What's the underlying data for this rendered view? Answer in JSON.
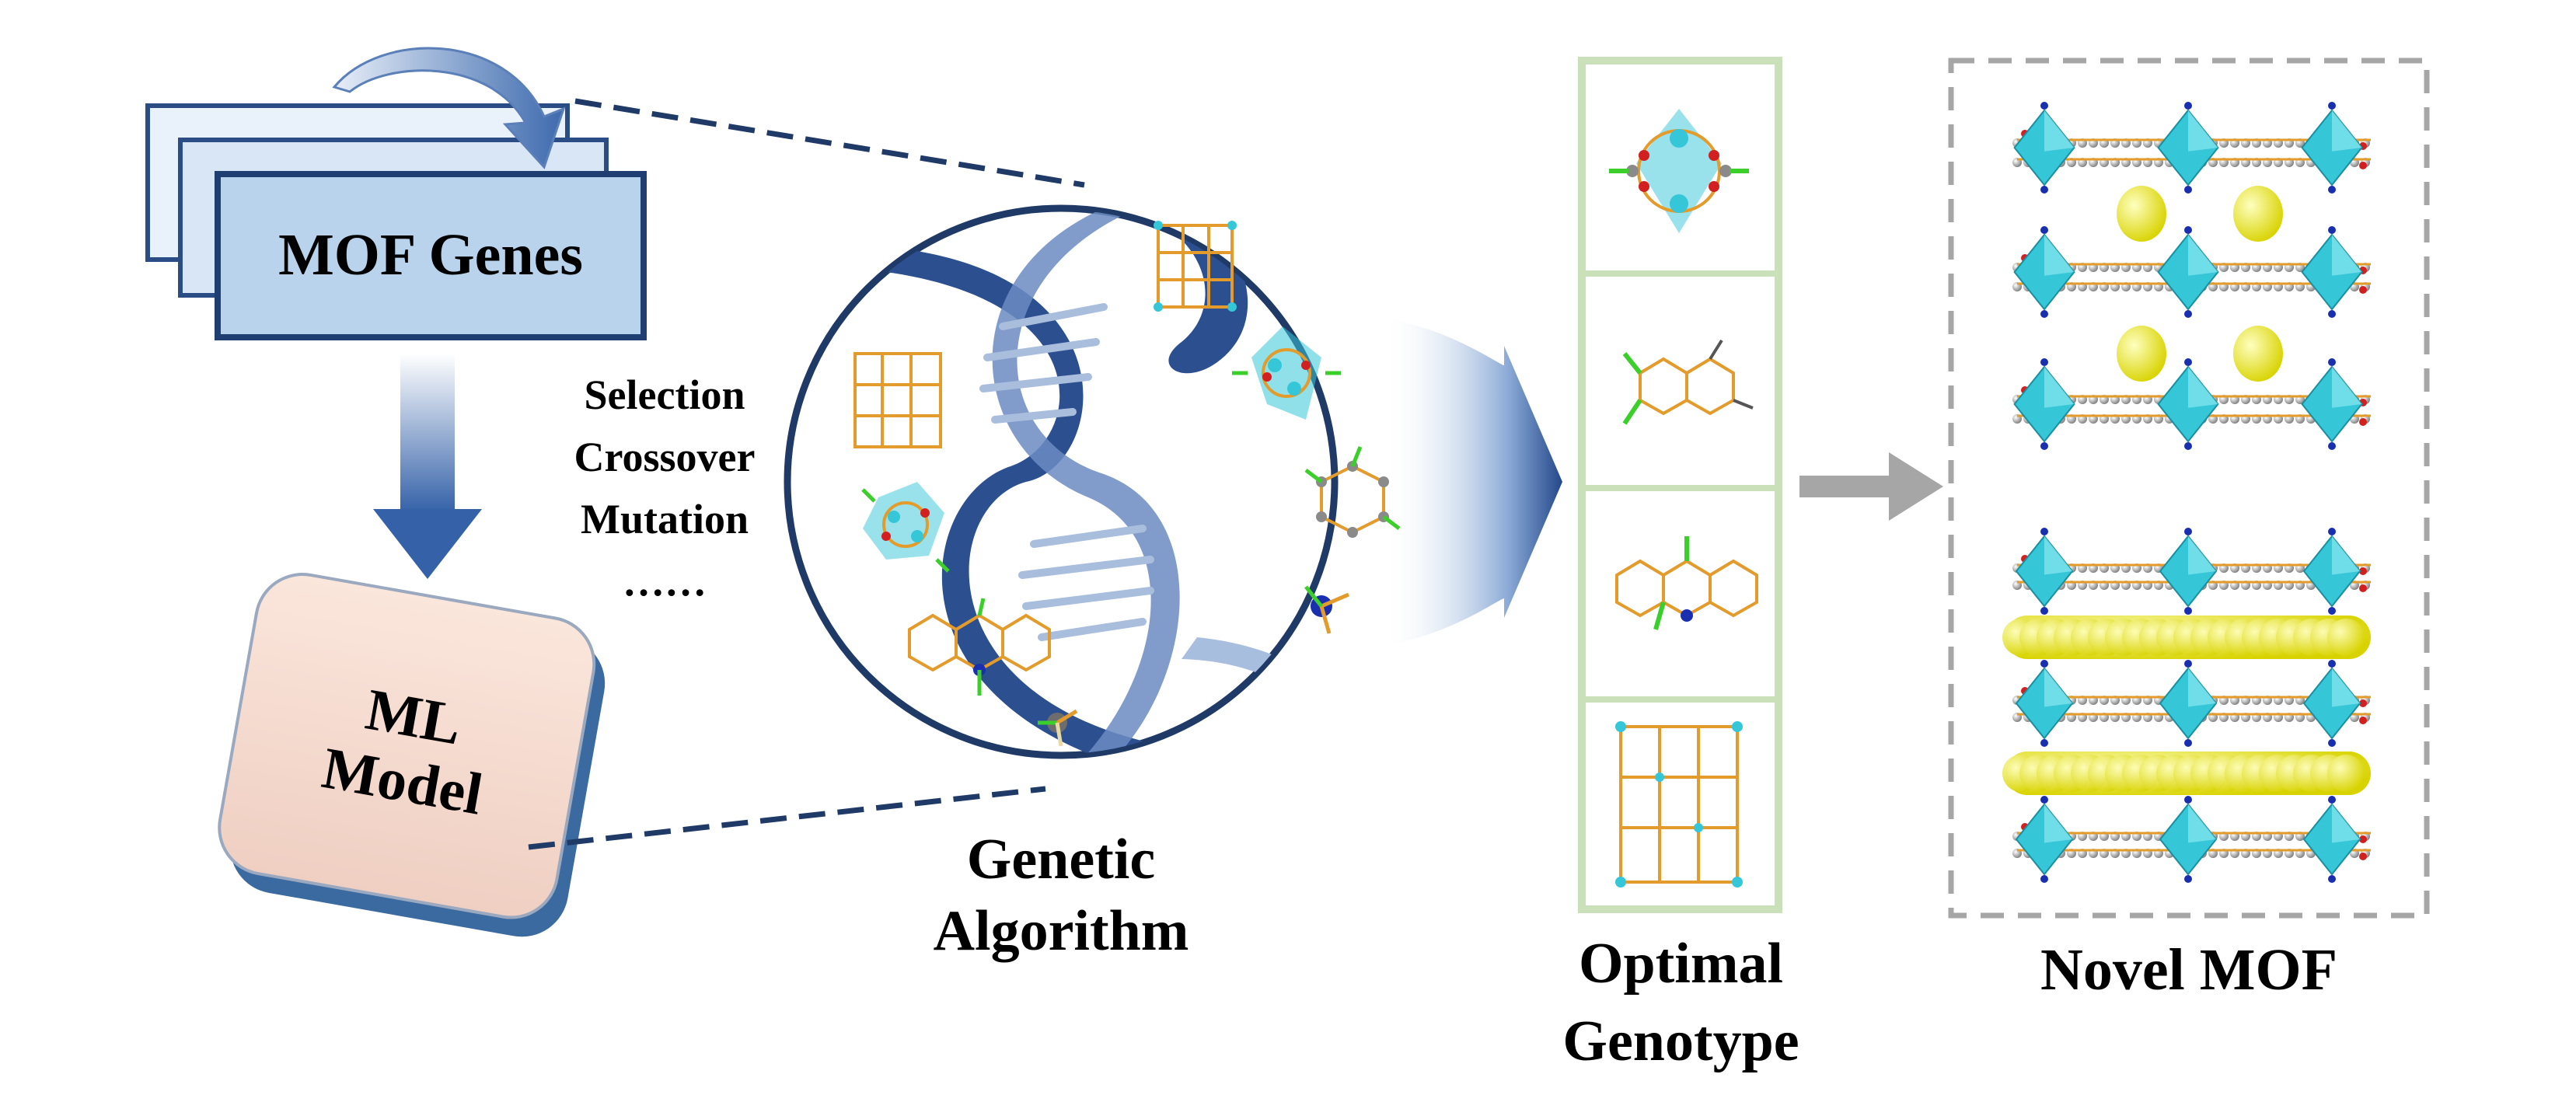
{
  "genes": {
    "label": "MOF Genes"
  },
  "model": {
    "line1": "ML",
    "line2": "Model"
  },
  "operations": [
    "Selection",
    "Crossover",
    "Mutation",
    "……"
  ],
  "algorithm": {
    "line1": "Genetic",
    "line2": "Algorithm"
  },
  "optimal": {
    "line1": "Optimal",
    "line2": "Genotype"
  },
  "novel": {
    "label": "Novel MOF"
  },
  "colors": {
    "box_fill": "#b9d3ec",
    "box_stroke": "#1f3f73",
    "model_fill": "#f6dcd2",
    "dna": "#2c4f8f",
    "green_frame": "#c9e0b8",
    "arrow_grey": "#a6a6a6",
    "polyhedron": "#35c6d8",
    "guest": "#f2ee1f",
    "bond": "#e39b2b"
  },
  "icons": [
    "curved-arrow-icon",
    "down-arrow-icon",
    "funnel-arrow-icon",
    "right-arrow-icon",
    "dna-helix-icon",
    "molecule-icon",
    "framework-icon"
  ]
}
